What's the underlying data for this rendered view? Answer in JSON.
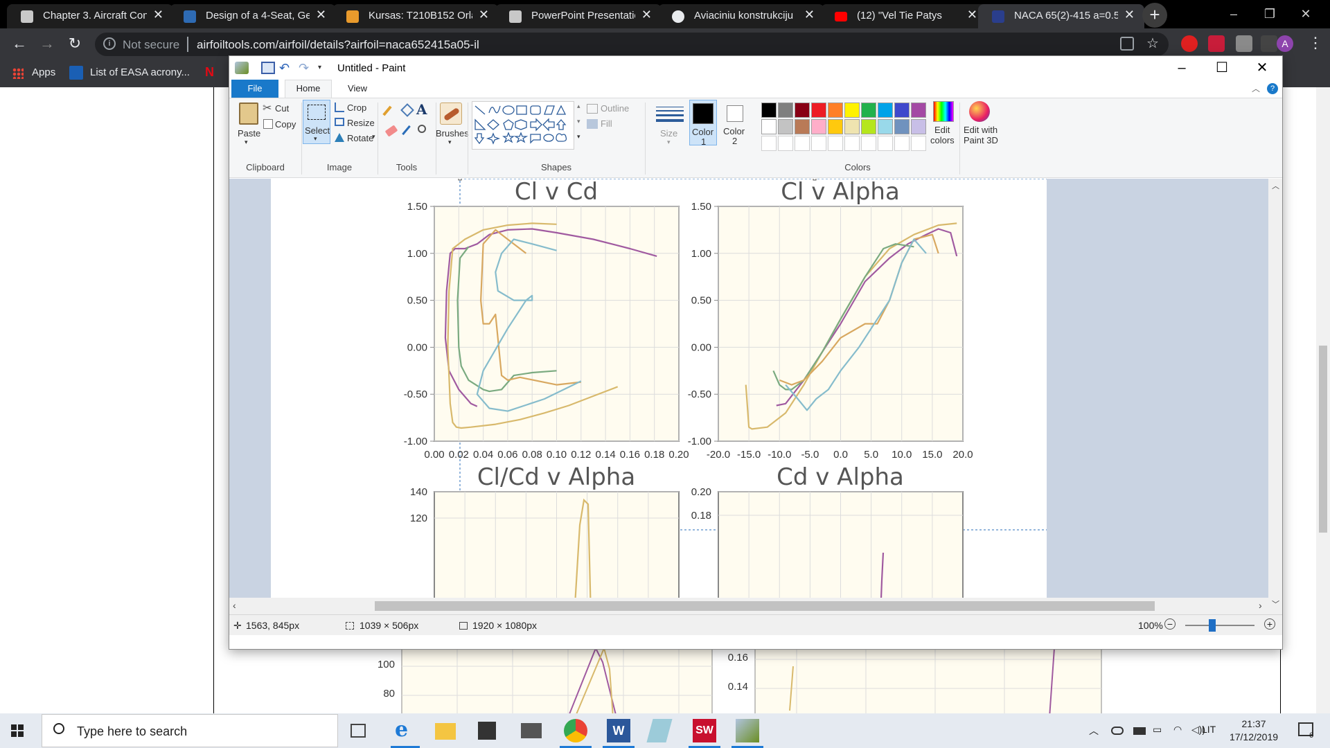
{
  "browser": {
    "tabs": [
      {
        "title": "Chapter 3. Aircraft Con",
        "favicon_color": "#c8c8c8",
        "active": false
      },
      {
        "title": "Design of a 4-Seat, Ger",
        "favicon_color": "#2e6bb4",
        "active": false
      },
      {
        "title": "Kursas: T210B152 Orla",
        "favicon_color": "#e89a2c",
        "active": false
      },
      {
        "title": "PowerPoint Presentatio",
        "favicon_color": "#c8c8c8",
        "active": false
      },
      {
        "title": "Aviaciniu konstrukciju",
        "favicon_color": "#e8eaed",
        "active": false
      },
      {
        "title": "(12) \"Vel Tie Patys",
        "favicon_color": "#ff0000",
        "active": false
      },
      {
        "title": "NACA 65(2)-415 a=0.5",
        "favicon_color": "#2a3e8c",
        "active": true
      }
    ],
    "tab_close_glyph": "✕",
    "new_tab_glyph": "+",
    "window_controls": {
      "minimize": "–",
      "restore": "❐",
      "close": "✕"
    },
    "nav": {
      "back": "←",
      "forward": "→",
      "reload": "↻"
    },
    "omnibox": {
      "info_glyph": "i",
      "security_label": "Not secure",
      "url": "airfoiltools.com/airfoil/details?airfoil=naca652415a05-il"
    },
    "bookmarks": [
      {
        "label": "Apps"
      },
      {
        "label": "List of EASA acrony..."
      },
      {
        "label": "N"
      }
    ],
    "profile_initial": "A"
  },
  "paint": {
    "title": "Untitled - Paint",
    "window_controls": {
      "minimize": "–",
      "maximize": "☐",
      "close": "✕"
    },
    "ribbon_tabs": {
      "file": "File",
      "home": "Home",
      "view": "View"
    },
    "clipboard": {
      "paste": "Paste",
      "cut": "Cut",
      "copy": "Copy",
      "label": "Clipboard"
    },
    "image": {
      "select": "Select",
      "crop": "Crop",
      "resize": "Resize",
      "rotate": "Rotate",
      "label": "Image"
    },
    "tools": {
      "label": "Tools",
      "text_glyph": "A"
    },
    "brushes": {
      "label": "Brushes"
    },
    "shapes": {
      "label": "Shapes",
      "outline": "Outline",
      "fill": "Fill"
    },
    "size": {
      "label": "Size"
    },
    "color1": {
      "label": "Color",
      "num": "1"
    },
    "color2": {
      "label": "Color",
      "num": "2"
    },
    "colors": {
      "label": "Colors",
      "edit_colors": [
        "Edit",
        "colors"
      ],
      "edit_paint3d": [
        "Edit with",
        "Paint 3D"
      ],
      "row1": [
        "#000000",
        "#7f7f7f",
        "#880015",
        "#ed1c24",
        "#ff7f27",
        "#fff200",
        "#22b14c",
        "#00a2e8",
        "#3f48cc",
        "#a349a4"
      ],
      "row2": [
        "#ffffff",
        "#c3c3c3",
        "#b97a57",
        "#ffaec9",
        "#ffc90e",
        "#efe4b0",
        "#b5e61d",
        "#99d9ea",
        "#7092be",
        "#c8bfe7"
      ]
    },
    "status": {
      "cursor": "1563, 845px",
      "selection": "1039 × 506px",
      "image_size": "1920 × 1080px",
      "zoom": "100%"
    }
  },
  "charts": {
    "cl_cd": {
      "title": "Cl v Cd"
    },
    "cl_alpha": {
      "title": "Cl v Alpha"
    },
    "clcd_alpha": {
      "title": "Cl/Cd v Alpha"
    },
    "cd_alpha": {
      "title": "Cd v Alpha"
    }
  },
  "chart_data": [
    {
      "type": "line",
      "title": "Cl v Cd",
      "xlabel": "",
      "ylabel": "",
      "xlim": [
        0.0,
        0.2
      ],
      "ylim": [
        -1.0,
        1.5
      ],
      "x_ticks": [
        "0.00",
        "0.02",
        "0.04",
        "0.06",
        "0.08",
        "0.10",
        "0.12",
        "0.14",
        "0.16",
        "0.18",
        "0.20"
      ],
      "y_ticks": [
        "1.50",
        "1.00",
        "0.50",
        "0.00",
        "-0.50",
        "-1.00"
      ],
      "series": [
        {
          "color": "#a05aa0",
          "x": [
            0.035,
            0.03,
            0.02,
            0.012,
            0.009,
            0.01,
            0.013,
            0.017,
            0.02,
            0.025,
            0.035,
            0.045,
            0.06,
            0.08,
            0.1,
            0.13,
            0.16,
            0.182
          ],
          "y": [
            -0.63,
            -0.6,
            -0.45,
            -0.25,
            0.1,
            0.6,
            1.0,
            1.05,
            1.05,
            1.05,
            1.1,
            1.2,
            1.25,
            1.26,
            1.22,
            1.15,
            1.05,
            0.97
          ]
        },
        {
          "color": "#d8b96c",
          "x": [
            0.1,
            0.08,
            0.06,
            0.04,
            0.025,
            0.015,
            0.012,
            0.011,
            0.012,
            0.013,
            0.015,
            0.018,
            0.022,
            0.03,
            0.05,
            0.07,
            0.09,
            0.11,
            0.13,
            0.15
          ],
          "y": [
            1.31,
            1.32,
            1.3,
            1.25,
            1.15,
            1.05,
            0.6,
            0.0,
            -0.3,
            -0.6,
            -0.8,
            -0.85,
            -0.86,
            -0.85,
            -0.82,
            -0.77,
            -0.7,
            -0.62,
            -0.52,
            -0.42
          ]
        },
        {
          "color": "#7aaa80",
          "x": [
            0.028,
            0.021,
            0.019,
            0.02,
            0.022,
            0.028,
            0.04,
            0.045,
            0.055,
            0.065,
            0.08,
            0.1
          ],
          "y": [
            1.07,
            0.95,
            0.5,
            0.0,
            -0.2,
            -0.35,
            -0.45,
            -0.47,
            -0.45,
            -0.3,
            -0.27,
            -0.25
          ]
        },
        {
          "color": "#d8a860",
          "x": [
            0.075,
            0.06,
            0.05,
            0.04,
            0.038,
            0.04,
            0.045,
            0.05,
            0.055,
            0.06,
            0.07,
            0.1,
            0.12
          ],
          "y": [
            1.0,
            1.15,
            1.25,
            1.1,
            0.5,
            0.25,
            0.25,
            0.35,
            -0.3,
            -0.35,
            -0.32,
            -0.4,
            -0.37
          ]
        },
        {
          "color": "#86bccc",
          "x": [
            0.1,
            0.08,
            0.065,
            0.055,
            0.05,
            0.052,
            0.065,
            0.08,
            0.08,
            0.075,
            0.06,
            0.04,
            0.035,
            0.045,
            0.06,
            0.09,
            0.12
          ],
          "y": [
            1.03,
            1.1,
            1.15,
            1.0,
            0.8,
            0.6,
            0.5,
            0.5,
            0.55,
            0.5,
            0.2,
            -0.25,
            -0.5,
            -0.65,
            -0.68,
            -0.55,
            -0.36
          ]
        }
      ]
    },
    {
      "type": "line",
      "title": "Cl v Alpha",
      "xlabel": "",
      "ylabel": "",
      "xlim": [
        -20,
        20
      ],
      "ylim": [
        -1.0,
        1.5
      ],
      "x_ticks": [
        "-20.0",
        "-15.0",
        "-10.0",
        "-5.0",
        "0.0",
        "5.0",
        "10.0",
        "15.0",
        "20.0"
      ],
      "y_ticks": [
        "1.50",
        "1.00",
        "0.50",
        "0.00",
        "-0.50",
        "-1.00"
      ],
      "series": [
        {
          "color": "#a05aa0",
          "x": [
            -10.5,
            -9.0,
            -6.0,
            -3.0,
            0.0,
            4.0,
            8.0,
            11.0,
            14.0,
            16.0,
            18.0,
            19.0
          ],
          "y": [
            -0.62,
            -0.6,
            -0.35,
            -0.05,
            0.25,
            0.7,
            0.95,
            1.1,
            1.2,
            1.26,
            1.22,
            0.97
          ]
        },
        {
          "color": "#d8b96c",
          "x": [
            -15.5,
            -15.0,
            -14.5,
            -12.0,
            -9.0,
            -6.0,
            -3.0,
            0.0,
            4.0,
            8.0,
            12.0,
            16.0,
            19.0
          ],
          "y": [
            -0.4,
            -0.85,
            -0.87,
            -0.85,
            -0.7,
            -0.4,
            -0.05,
            0.3,
            0.75,
            1.05,
            1.2,
            1.3,
            1.32
          ]
        },
        {
          "color": "#7aaa80",
          "x": [
            -11.0,
            -10.0,
            -9.0,
            -8.0,
            -6.0,
            -3.0,
            0.0,
            4.0,
            7.0,
            9.0,
            12.0
          ],
          "y": [
            -0.25,
            -0.4,
            -0.45,
            -0.45,
            -0.35,
            -0.05,
            0.3,
            0.75,
            1.05,
            1.1,
            1.07
          ]
        },
        {
          "color": "#d8a860",
          "x": [
            -10.0,
            -8.0,
            -6.0,
            -3.0,
            0.0,
            4.0,
            6.0,
            8.0,
            10.0,
            12.0,
            15.0,
            16.0
          ],
          "y": [
            -0.35,
            -0.4,
            -0.35,
            -0.15,
            0.1,
            0.25,
            0.25,
            0.5,
            0.9,
            1.15,
            1.2,
            1.0
          ]
        },
        {
          "color": "#86bccc",
          "x": [
            -9.0,
            -7.0,
            -5.5,
            -4.0,
            -2.0,
            0.0,
            3.0,
            6.0,
            8.0,
            10.0,
            12.0,
            14.0
          ],
          "y": [
            -0.4,
            -0.55,
            -0.67,
            -0.55,
            -0.45,
            -0.25,
            0.0,
            0.3,
            0.5,
            0.9,
            1.15,
            1.0
          ]
        }
      ]
    },
    {
      "type": "line",
      "title": "Cl/Cd v Alpha",
      "y_ticks": [
        "140",
        "120",
        "100",
        "80"
      ]
    },
    {
      "type": "line",
      "title": "Cd v Alpha",
      "y_ticks": [
        "0.20",
        "0.18",
        "0.16",
        "0.14"
      ]
    }
  ],
  "taskbar": {
    "search_placeholder": "Type here to search",
    "language": "LIT",
    "time": "21:37",
    "date": "17/12/2019",
    "notifications": "6"
  }
}
